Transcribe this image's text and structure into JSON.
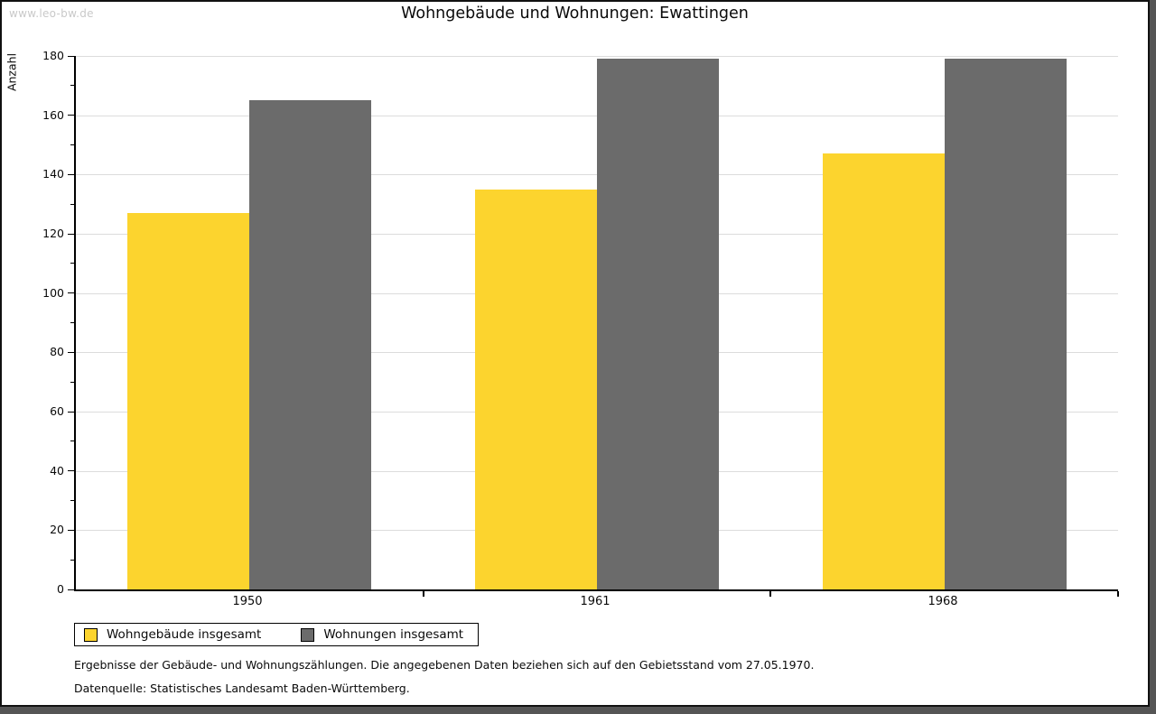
{
  "watermark": "www.leo-bw.de",
  "title": "Wohngebäude und Wohnungen: Ewattingen",
  "chart_data": {
    "type": "bar",
    "title": "Wohngebäude und Wohnungen: Ewattingen",
    "xlabel": "",
    "ylabel": "Anzahl",
    "categories": [
      "1950",
      "1961",
      "1968"
    ],
    "series": [
      {
        "name": "Wohngebäude insgesamt",
        "color": "#fcd42e",
        "values": [
          127,
          135,
          147
        ]
      },
      {
        "name": "Wohnungen insgesamt",
        "color": "#6b6b6b",
        "values": [
          165,
          179,
          179
        ]
      }
    ],
    "ylim": [
      0,
      180
    ],
    "ytick_step": 20,
    "yminor_step": 10,
    "grid": true,
    "legend_position": "bottom-left"
  },
  "footnotes": {
    "line1": "Ergebnisse der Gebäude- und Wohnungszählungen. Die angegebenen Daten beziehen sich auf den Gebietsstand vom 27.05.1970.",
    "line2": "Datenquelle: Statistisches Landesamt Baden-Württemberg."
  },
  "colors": {
    "series1": "#fcd42e",
    "series2": "#6b6b6b",
    "gridline": "#dcdcdc",
    "axis": "#000000",
    "watermark": "#c9c9c9",
    "frame_shadow": "#555555",
    "background": "#ffffff"
  }
}
